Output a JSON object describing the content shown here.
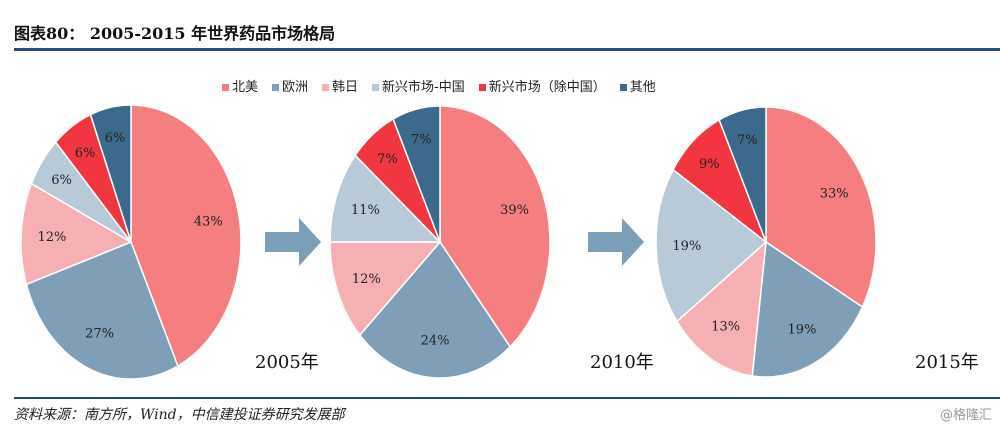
{
  "title": "图表80：  2005-2015 年世界药品市场格局",
  "source": "资料来源：南方所，Wind，中信建投证券研究发展部",
  "watermark": "@格隆汇",
  "chart_data": {
    "type": "pie",
    "categories": [
      "北美",
      "欧洲",
      "韩日",
      "新兴市场-中国",
      "新兴市场（除中国）",
      "其他"
    ],
    "colors": [
      "#f47e80",
      "#7f9fb8",
      "#f6b0b4",
      "#b8cad8",
      "#f23641",
      "#3c6a8d"
    ],
    "legend_position": "top",
    "pies": [
      {
        "label": "2005年",
        "values": [
          43,
          27,
          12,
          6,
          6,
          6
        ]
      },
      {
        "label": "2010年",
        "values": [
          39,
          24,
          12,
          11,
          7,
          7
        ]
      },
      {
        "label": "2015年",
        "values": [
          33,
          19,
          13,
          19,
          9,
          7
        ]
      }
    ]
  }
}
